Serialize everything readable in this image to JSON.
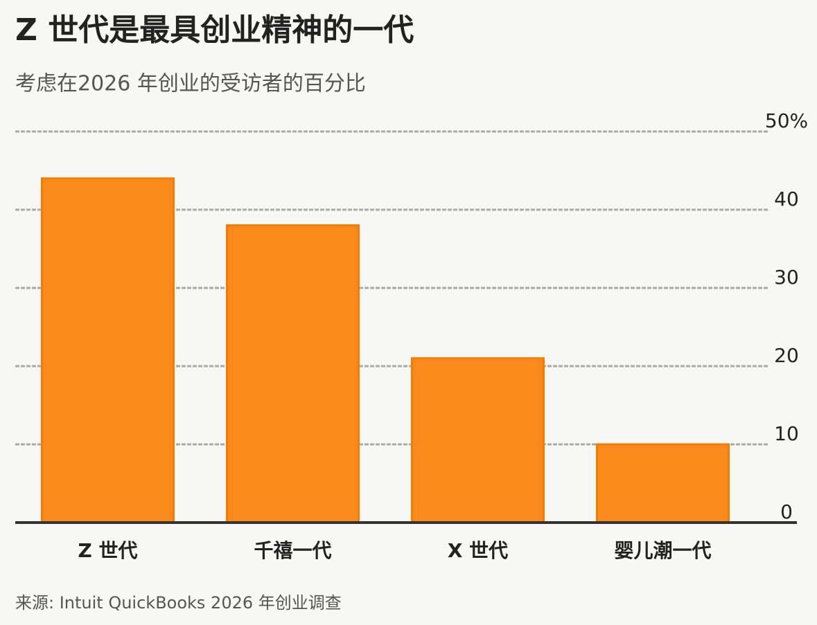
{
  "chart_data": {
    "type": "bar",
    "title": "Z 世代是最具创业精神的一代",
    "subtitle": "考虑在2026 年创业的受访者的百分比",
    "source": "来源: Intuit QuickBooks 2026 年创业调查",
    "categories": [
      "Z 世代",
      "千禧一代",
      "X 世代",
      "婴儿潮一代"
    ],
    "values": [
      44,
      38,
      21,
      10
    ],
    "color": "#fb8a1c",
    "ylim": [
      0,
      50
    ],
    "yticks": [
      0,
      10,
      20,
      30,
      40,
      {
        "value": 50,
        "label": "50%"
      }
    ],
    "grid": true
  }
}
